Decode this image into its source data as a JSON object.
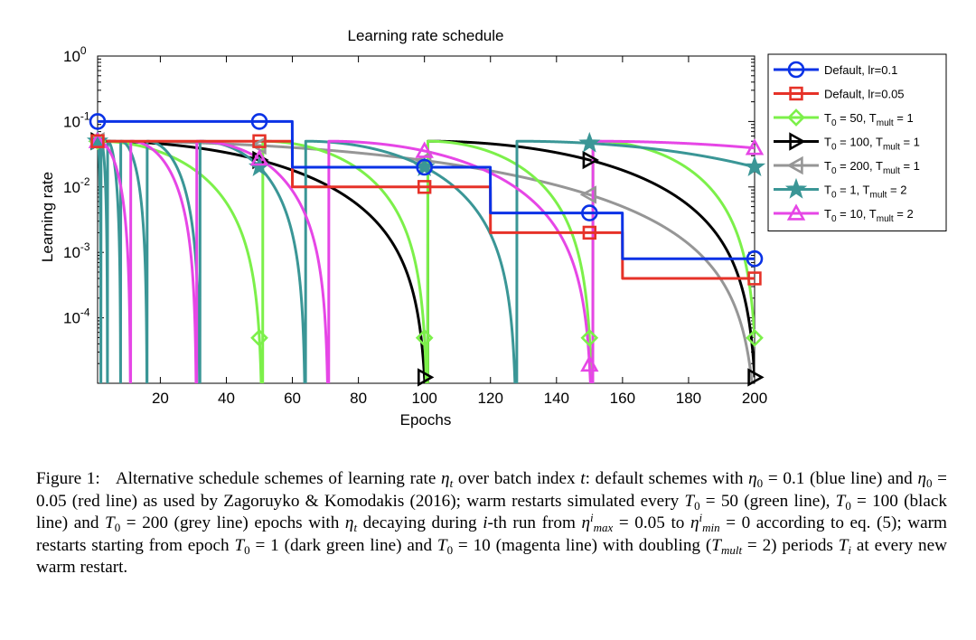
{
  "chart_data": {
    "type": "line",
    "title": "Learning rate schedule",
    "xlabel": "Epochs",
    "ylabel": "Learning rate",
    "xlim": [
      1,
      200
    ],
    "ylim": [
      1e-05,
      1
    ],
    "yscale": "log",
    "x_ticks": [
      20,
      40,
      60,
      80,
      100,
      120,
      140,
      160,
      180,
      200
    ],
    "y_ticks": [
      {
        "base": "10",
        "exp": "0",
        "value": 1
      },
      {
        "base": "10",
        "exp": "-1",
        "value": 0.1
      },
      {
        "base": "10",
        "exp": "-2",
        "value": 0.01
      },
      {
        "base": "10",
        "exp": "-3",
        "value": 0.001
      },
      {
        "base": "10",
        "exp": "-4",
        "value": 0.0001
      }
    ],
    "legend_position": "outside-right",
    "series": [
      {
        "name": "Default, lr=0.1",
        "label_main": "Default, lr=0.1",
        "color": "#0a32e6",
        "marker": "circle",
        "kind": "step",
        "lr": 0.1,
        "steps": [
          60,
          120,
          160
        ],
        "factor": 0.2,
        "markers_x": [
          1,
          50,
          100,
          150,
          200
        ]
      },
      {
        "name": "Default, lr=0.05",
        "label_main": "Default, lr=0.05",
        "color": "#e63228",
        "marker": "square",
        "kind": "step",
        "lr": 0.05,
        "steps": [
          60,
          120,
          160
        ],
        "factor": 0.2,
        "markers_x": [
          1,
          50,
          100,
          150,
          200
        ]
      },
      {
        "name": "T0 = 50, Tmult = 1",
        "label_main": "T",
        "label_sub": "0",
        "label_mid": " = 50, T",
        "label_sub2": "mult",
        "label_end": " = 1",
        "color": "#7cf04a",
        "marker": "diamond",
        "kind": "cosine",
        "T0": 50,
        "Tmult": 1,
        "lr": 0.05,
        "markers_x": [
          1,
          50,
          100,
          150,
          200
        ]
      },
      {
        "name": "T0 = 100, Tmult = 1",
        "label_main": "T",
        "label_sub": "0",
        "label_mid": " = 100, T",
        "label_sub2": "mult",
        "label_end": " = 1",
        "color": "#000000",
        "marker": "triangle-right",
        "kind": "cosine",
        "T0": 100,
        "Tmult": 1,
        "lr": 0.05,
        "markers_x": [
          1,
          50,
          100,
          150,
          200
        ]
      },
      {
        "name": "T0 = 200, Tmult = 1",
        "label_main": "T",
        "label_sub": "0",
        "label_mid": " = 200, T",
        "label_sub2": "mult",
        "label_end": " = 1",
        "color": "#969696",
        "marker": "triangle-left",
        "kind": "cosine",
        "T0": 200,
        "Tmult": 1,
        "lr": 0.05,
        "markers_x": [
          1,
          50,
          100,
          150,
          200
        ]
      },
      {
        "name": "T0 = 1, Tmult = 2",
        "label_main": "T",
        "label_sub": "0",
        "label_mid": " = 1, T",
        "label_sub2": "mult",
        "label_end": " = 2",
        "color": "#3a9696",
        "marker": "star",
        "kind": "cosine",
        "T0": 1,
        "Tmult": 2,
        "lr": 0.05,
        "markers_x": [
          1,
          50,
          100,
          150,
          200
        ]
      },
      {
        "name": "T0 = 10, Tmult = 2",
        "label_main": "T",
        "label_sub": "0",
        "label_mid": " = 10, T",
        "label_sub2": "mult",
        "label_end": " = 2",
        "color": "#e646e6",
        "marker": "triangle-up",
        "kind": "cosine",
        "T0": 10,
        "Tmult": 2,
        "lr": 0.05,
        "markers_x": [
          1,
          50,
          100,
          150,
          200
        ]
      }
    ]
  },
  "caption": {
    "label": "Figure 1:",
    "t1": "Alternative schedule schemes of learning rate ",
    "t2": " over batch index ",
    "t3": ": default schemes with ",
    "t4": " = 0.1 (blue line) and ",
    "t5": " = 0.05 (red line) as used by Zagoruyko & Komodakis (2016); warm restarts simulated every ",
    "t6": " = 50 (green line), ",
    "t7": " = 100 (black line) and ",
    "t8": " = 200 (grey line) epochs with ",
    "t9": " decaying during ",
    "t10": "-th run from ",
    "t11": " = 0.05 to ",
    "t12": " = 0 according to eq. (5); warm restarts starting from epoch ",
    "t13": " = 1 (dark green line) and ",
    "t14": " = 10 (magenta line) with doubling (",
    "t15": " = 2) periods ",
    "t16": " at every new warm restart."
  }
}
